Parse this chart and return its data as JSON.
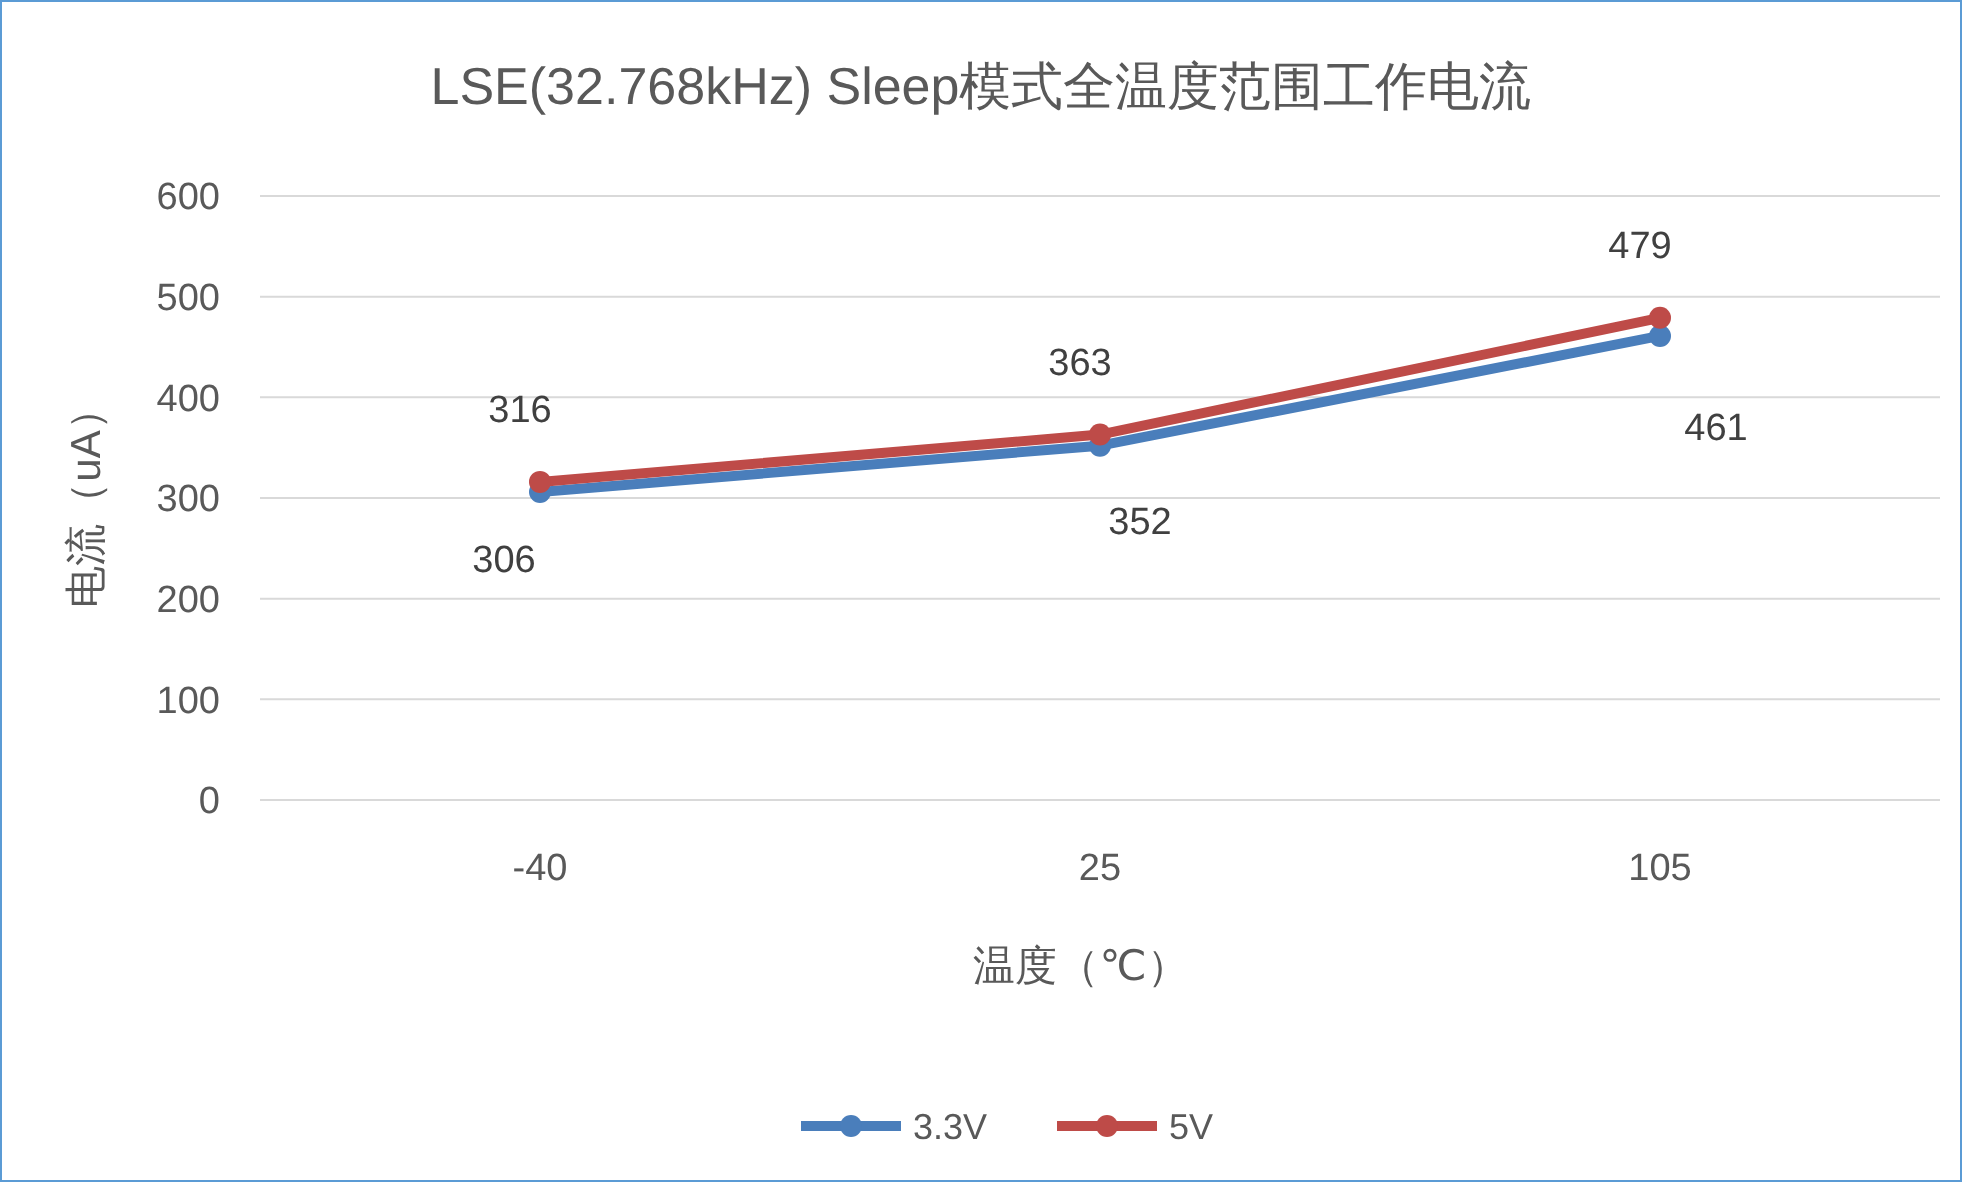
{
  "chart_data": {
    "type": "line",
    "title": "LSE(32.768kHz) Sleep模式全温度范围工作电流",
    "xlabel": "温度（℃）",
    "ylabel": "电流（uA）",
    "categories": [
      "-40",
      "25",
      "105"
    ],
    "series": [
      {
        "name": "3.3V",
        "color": "#4a7ebb",
        "values": [
          306,
          352,
          461
        ]
      },
      {
        "name": "5V",
        "color": "#be4b48",
        "values": [
          316,
          363,
          479
        ]
      }
    ],
    "ylim": [
      0,
      600
    ],
    "yticks": [
      0,
      100,
      200,
      300,
      400,
      500,
      600
    ],
    "grid": "y",
    "legend": "bottom",
    "marker": "circle",
    "line_style": "solid",
    "data_labels": true
  }
}
